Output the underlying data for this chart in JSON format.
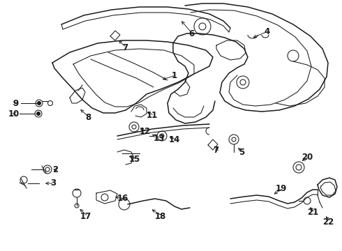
{
  "background_color": "#ffffff",
  "line_color": "#1a1a1a",
  "fig_width": 4.9,
  "fig_height": 3.6,
  "dpi": 100,
  "font_size": 8.5
}
